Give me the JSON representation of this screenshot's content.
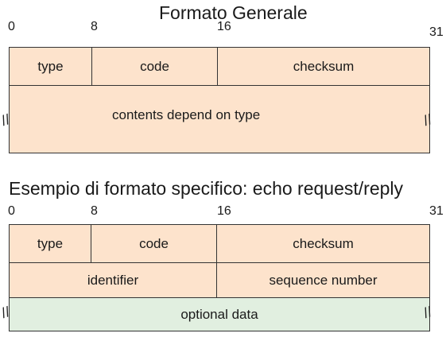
{
  "general": {
    "title": "Formato Generale",
    "ticks": {
      "t0": "0",
      "t8": "8",
      "t16": "16",
      "t31": "31"
    },
    "fields": {
      "type": "type",
      "code": "code",
      "checksum": "checksum",
      "contents": "contents depend on type"
    },
    "break_mark": "//"
  },
  "echo": {
    "title": "Esempio di formato specifico: echo request/reply",
    "ticks": {
      "t0": "0",
      "t8": "8",
      "t16": "16",
      "t31": "31"
    },
    "fields": {
      "type": "type",
      "code": "code",
      "checksum": "checksum",
      "identifier": "identifier",
      "sequence": "sequence number",
      "optional": "optional data"
    },
    "break_mark": "//"
  },
  "colors": {
    "header_fill": "#fde3cc",
    "optional_data_fill": "#e1efe0",
    "border": "#333333"
  }
}
